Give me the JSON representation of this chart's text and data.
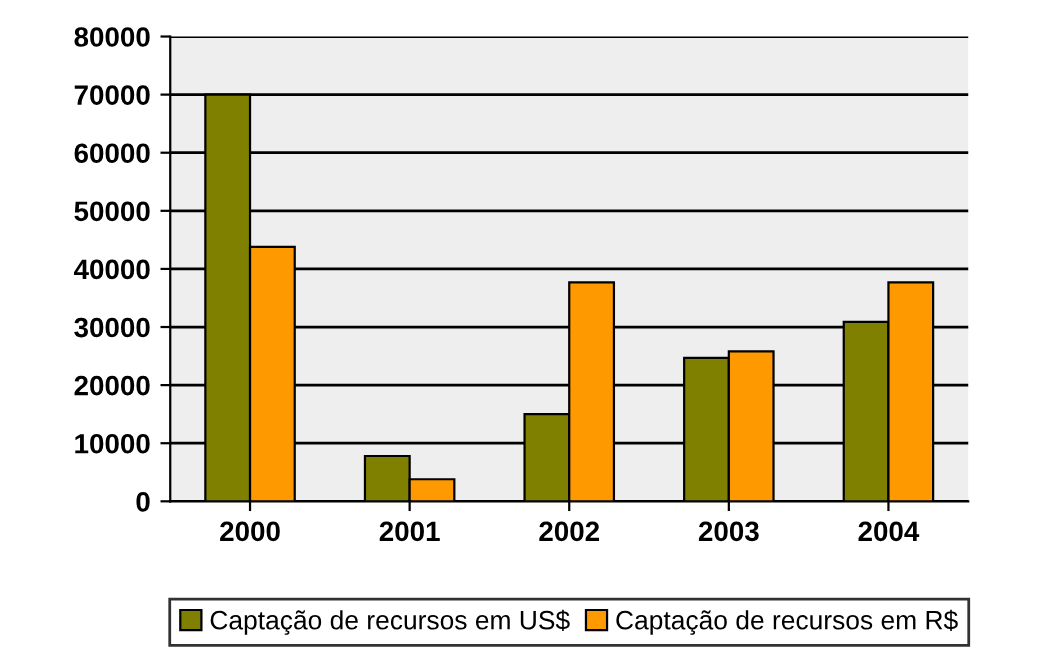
{
  "chart_data": {
    "type": "bar",
    "categories": [
      "2000",
      "2001",
      "2002",
      "2003",
      "2004"
    ],
    "series": [
      {
        "name": "Captação de recursos em US$",
        "color": "#808000",
        "values": [
          70000,
          7800,
          15000,
          24700,
          30900
        ]
      },
      {
        "name": "Captação de recursos em R$",
        "color": "#ff9900",
        "values": [
          43800,
          3800,
          37700,
          25800,
          37700
        ]
      }
    ],
    "ylim": [
      0,
      80000
    ],
    "yticks": [
      0,
      10000,
      20000,
      30000,
      40000,
      50000,
      60000,
      70000,
      80000
    ],
    "grid": "y",
    "legend": "bottom"
  }
}
